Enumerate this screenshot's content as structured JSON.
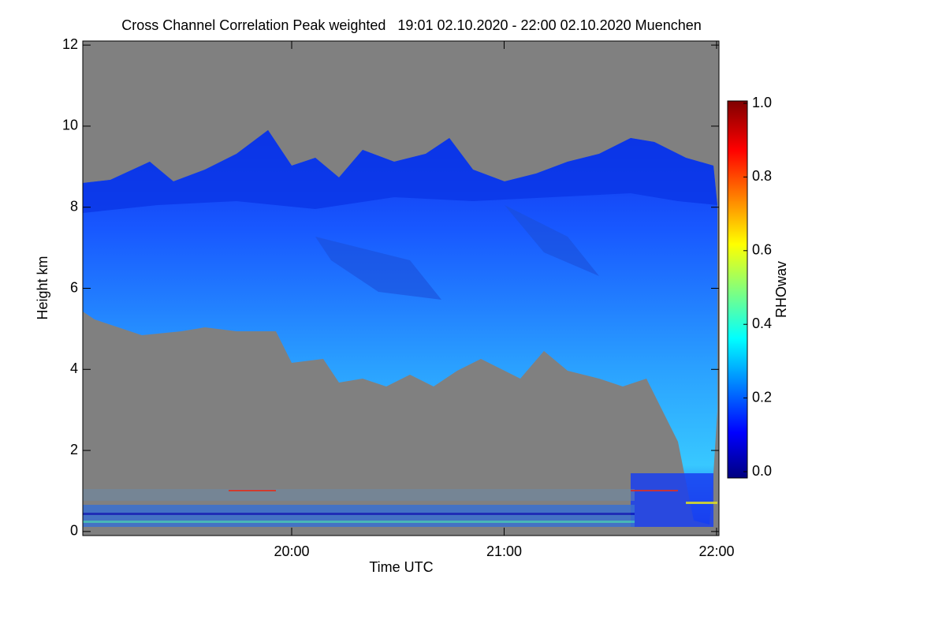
{
  "chart_data": {
    "type": "heatmap",
    "title": "Cross Channel Correlation Peak weighted   19:01 02.10.2020 - 22:00 02.10.2020 Muenchen",
    "x_label": "Time UTC",
    "y_label": "Height km",
    "xlim": [
      "19:01",
      "22:00"
    ],
    "xticks": [
      "20:00",
      "21:00",
      "22:00"
    ],
    "ylim": [
      -0.1,
      12.1
    ],
    "yticks": [
      0,
      2,
      4,
      6,
      8,
      10,
      12
    ],
    "colorbar": {
      "label": "RHOwav",
      "lim": [
        0,
        1
      ],
      "ticks": [
        {
          "value": 0,
          "label": "0.0"
        },
        {
          "value": 0.2,
          "label": "0.2"
        },
        {
          "value": 0.4,
          "label": "0.4"
        },
        {
          "value": 0.6,
          "label": "0.6"
        },
        {
          "value": 0.8,
          "label": "0.8"
        },
        {
          "value": 1,
          "label": "1.0"
        }
      ]
    }
  }
}
